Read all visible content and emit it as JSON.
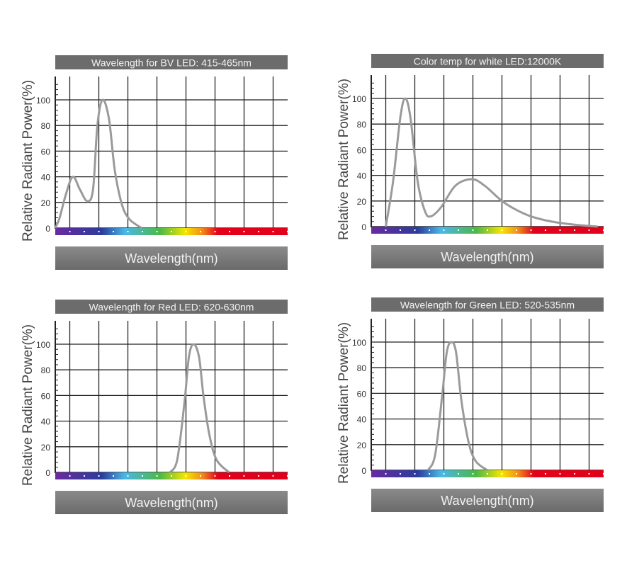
{
  "colors": {
    "curve": "#9a9a9a",
    "grid": "#222222",
    "banner": "#6c6c6c",
    "banner_text": "#f2f2f2",
    "spectrum": [
      "#6a2aa0",
      "#2b3c9c",
      "#4ab8e6",
      "#4cb848",
      "#f5e600",
      "#f39019",
      "#e3001b",
      "#e3001b"
    ]
  },
  "chart_data": [
    {
      "type": "line",
      "title": "Wavelength for BV LED: 415-465nm",
      "xlabel": "Wavelength(nm)",
      "ylabel": "Relative Radiant Power(%)",
      "xlim": [
        0,
        8
      ],
      "ylim": [
        0,
        115
      ],
      "yticks": [
        "0",
        "20",
        "40",
        "60",
        "80",
        "100"
      ],
      "grid": true,
      "series": [
        {
          "points": [
            [
              0,
              0
            ],
            [
              0.15,
              8
            ],
            [
              0.35,
              25
            ],
            [
              0.6,
              40
            ],
            [
              0.85,
              30
            ],
            [
              1.1,
              21
            ],
            [
              1.3,
              30
            ],
            [
              1.45,
              80
            ],
            [
              1.63,
              100
            ],
            [
              1.85,
              85
            ],
            [
              2.05,
              45
            ],
            [
              2.3,
              18
            ],
            [
              2.55,
              7
            ],
            [
              2.9,
              1
            ],
            [
              3.0,
              0
            ]
          ]
        }
      ]
    },
    {
      "type": "line",
      "title": "Color temp for white LED:12000K",
      "xlabel": "Wavelength(nm)",
      "ylabel": "Relative Radiant Power(%)",
      "xlim": [
        0,
        8
      ],
      "ylim": [
        0,
        115
      ],
      "yticks": [
        "0",
        "20",
        "40",
        "60",
        "80",
        "100"
      ],
      "grid": true,
      "series": [
        {
          "points": [
            [
              0.5,
              0
            ],
            [
              0.75,
              35
            ],
            [
              1.0,
              85
            ],
            [
              1.17,
              100
            ],
            [
              1.35,
              85
            ],
            [
              1.6,
              35
            ],
            [
              1.85,
              12
            ],
            [
              2.05,
              8
            ],
            [
              2.4,
              15
            ],
            [
              2.9,
              32
            ],
            [
              3.46,
              37
            ],
            [
              3.9,
              32
            ],
            [
              4.5,
              20
            ],
            [
              5.0,
              13
            ],
            [
              5.5,
              8
            ],
            [
              6.2,
              4
            ],
            [
              7.0,
              1.5
            ],
            [
              7.8,
              0
            ]
          ]
        }
      ]
    },
    {
      "type": "line",
      "title": "Wavelength for Red LED:  620-630nm",
      "xlabel": "Wavelength(nm)",
      "ylabel": "Relative Radiant Power(%)",
      "xlim": [
        0,
        8
      ],
      "ylim": [
        0,
        115
      ],
      "yticks": [
        "0",
        "20",
        "40",
        "60",
        "80",
        "100"
      ],
      "grid": true,
      "series": [
        {
          "points": [
            [
              3.95,
              0
            ],
            [
              4.2,
              10
            ],
            [
              4.45,
              55
            ],
            [
              4.6,
              90
            ],
            [
              4.76,
              100
            ],
            [
              4.95,
              90
            ],
            [
              5.1,
              60
            ],
            [
              5.3,
              30
            ],
            [
              5.55,
              10
            ],
            [
              5.98,
              0
            ]
          ]
        }
      ]
    },
    {
      "type": "line",
      "title": "Wavelength for Green LED: 520-535nm",
      "xlabel": "Wavelength(nm)",
      "ylabel": "Relative Radiant Power(%)",
      "xlim": [
        0,
        8
      ],
      "ylim": [
        0,
        115
      ],
      "yticks": [
        "0",
        "20",
        "40",
        "60",
        "80",
        "100"
      ],
      "grid": true,
      "series": [
        {
          "points": [
            [
              1.95,
              0
            ],
            [
              2.2,
              12
            ],
            [
              2.45,
              60
            ],
            [
              2.6,
              92
            ],
            [
              2.76,
              100
            ],
            [
              2.92,
              92
            ],
            [
              3.1,
              55
            ],
            [
              3.35,
              22
            ],
            [
              3.6,
              7
            ],
            [
              4.0,
              0
            ]
          ]
        }
      ]
    }
  ]
}
